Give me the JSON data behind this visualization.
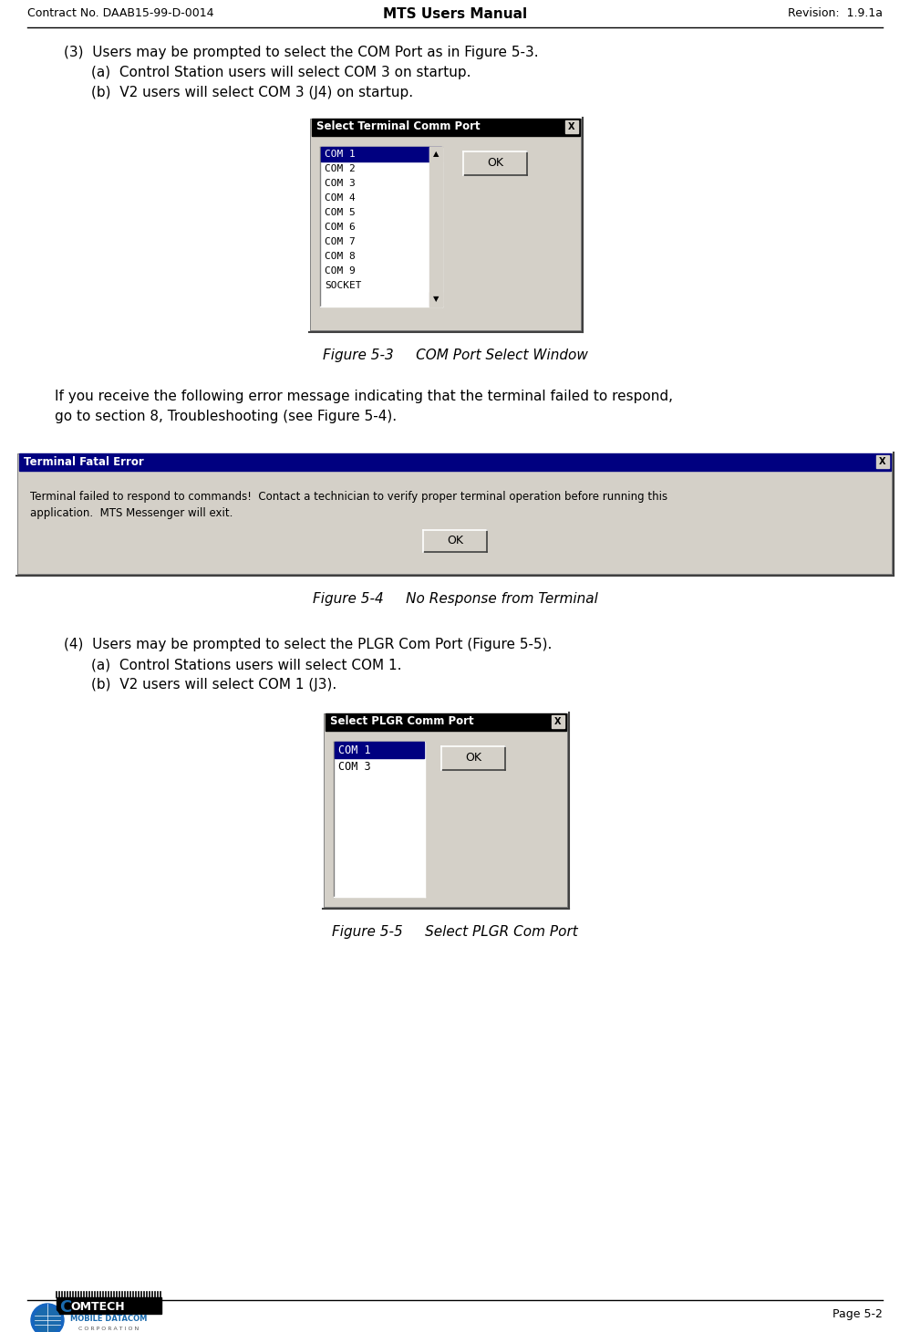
{
  "header_left": "Contract No. DAAB15-99-D-0014",
  "header_center": "MTS Users Manual",
  "header_right": "Revision:  1.9.1a",
  "footer_right": "Page 5-2",
  "bg_color": "#ffffff",
  "para3_text": "(3)  Users may be prompted to select the COM Port as in Figure 5-3.",
  "para3a_text": "(a)  Control Station users will select COM 3 on startup.",
  "para3b_text": "(b)  V2 users will select COM 3 (J4) on startup.",
  "fig53_title": "Select Terminal Comm Port",
  "fig53_items": [
    "COM 1",
    "COM 2",
    "COM 3",
    "COM 4",
    "COM 5",
    "COM 6",
    "COM 7",
    "COM 8",
    "COM 9",
    "SOCKET"
  ],
  "fig53_selected": 0,
  "fig53_caption": "Figure 5-3     COM Port Select Window",
  "error_para1": "If you receive the following error message indicating that the terminal failed to respond,",
  "error_para2": "go to section 8, Troubleshooting (see Figure 5-4).",
  "fig54_title": "Terminal Fatal Error",
  "fig54_line1": "Terminal failed to respond to commands!  Contact a technician to verify proper terminal operation before running this",
  "fig54_line2": "application.  MTS Messenger will exit.",
  "fig54_caption": "Figure 5-4     No Response from Terminal",
  "para4_text": "(4)  Users may be prompted to select the PLGR Com Port (Figure 5-5).",
  "para4a_text": "(a)  Control Stations users will select COM 1.",
  "para4b_text": "(b)  V2 users will select COM 1 (J3).",
  "fig55_title": "Select PLGR Comm Port",
  "fig55_items": [
    "COM 1",
    "COM 3"
  ],
  "fig55_selected": 0,
  "fig55_caption": "Figure 5-5     Select PLGR Com Port",
  "win_bg": "#d4d0c8",
  "win_titlebar_dark": "#000000",
  "win_titlebar_error": "#000080",
  "listbox_bg": "#ffffff",
  "listbox_sel_bg": "#000080",
  "listbox_sel_fg": "#ffffff",
  "listbox_fg": "#000000",
  "btn_bg": "#d4d0c8",
  "gray_border": "#808080",
  "white_hi": "#ffffff",
  "dark_border": "#404040"
}
